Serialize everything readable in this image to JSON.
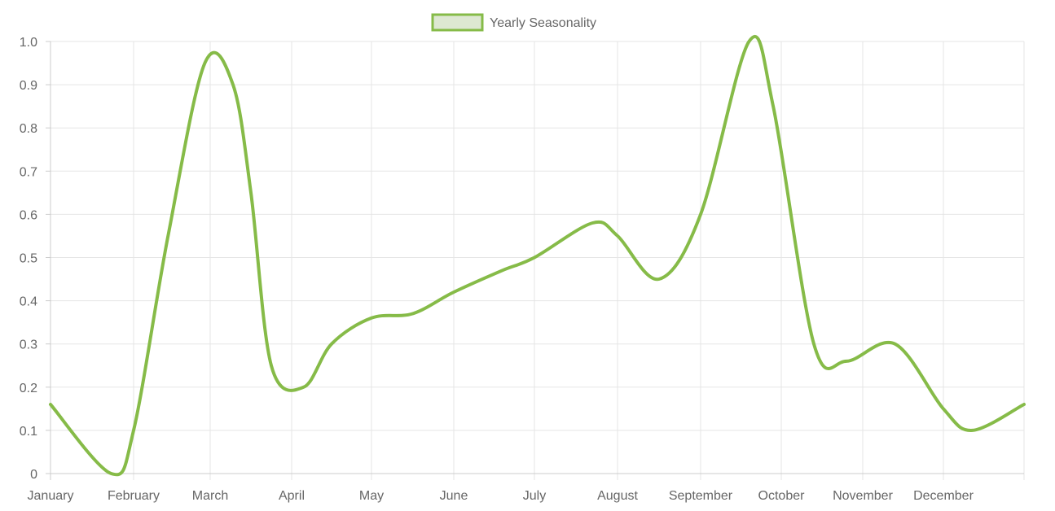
{
  "chart_data": {
    "type": "line",
    "title": "",
    "xlabel": "",
    "ylabel": "",
    "ylim": [
      0,
      1
    ],
    "yticks": [
      "0",
      "0.1",
      "0.2",
      "0.3",
      "0.4",
      "0.5",
      "0.6",
      "0.7",
      "0.8",
      "0.9",
      "1.0"
    ],
    "categories": [
      "January",
      "February",
      "March",
      "April",
      "May",
      "June",
      "July",
      "August",
      "September",
      "October",
      "November",
      "December"
    ],
    "legend": {
      "position": "top-center",
      "entries": [
        "Yearly Seasonality"
      ]
    },
    "grid": true,
    "series": [
      {
        "name": "Yearly Seasonality",
        "color": "#86bb48",
        "fill": "#dde8d2",
        "x": [
          0,
          0.73,
          1.0,
          1.45,
          1.93,
          2.28,
          2.5,
          2.75,
          3.15,
          3.5,
          4.0,
          4.5,
          5.0,
          5.6,
          6.0,
          6.7,
          7.0,
          7.5,
          8.0,
          8.6,
          8.9,
          9.4,
          9.8,
          10.4,
          11.0,
          11.36,
          12.0
        ],
        "values": [
          0.16,
          0.0,
          0.1,
          0.55,
          0.95,
          0.9,
          0.65,
          0.25,
          0.2,
          0.3,
          0.36,
          0.37,
          0.42,
          0.47,
          0.5,
          0.58,
          0.55,
          0.45,
          0.6,
          1.0,
          0.85,
          0.3,
          0.26,
          0.3,
          0.15,
          0.1,
          0.16
        ]
      }
    ]
  }
}
